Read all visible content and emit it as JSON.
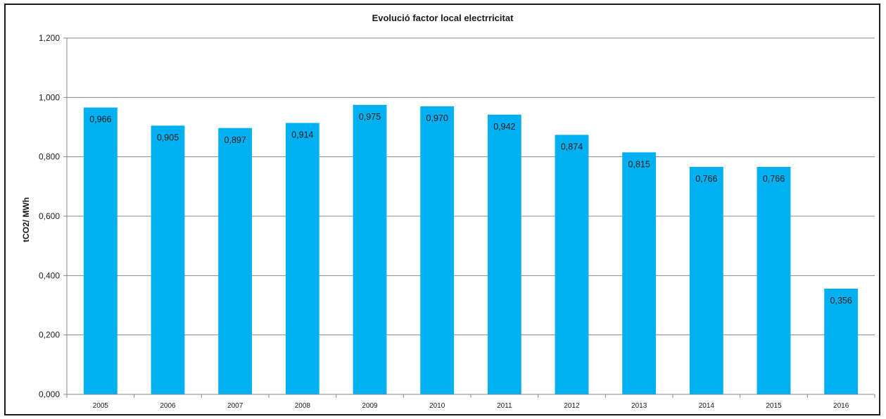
{
  "chart_data": {
    "type": "bar",
    "title": "Evolució factor local electrricitat",
    "xlabel": "",
    "ylabel": "tCO2/ MWh",
    "categories": [
      "2005",
      "2006",
      "2007",
      "2008",
      "2009",
      "2010",
      "2011",
      "2012",
      "2013",
      "2014",
      "2015",
      "2016"
    ],
    "values": [
      0.966,
      0.905,
      0.897,
      0.914,
      0.975,
      0.97,
      0.942,
      0.874,
      0.815,
      0.766,
      0.766,
      0.356
    ],
    "value_labels": [
      "0,966",
      "0,905",
      "0,897",
      "0,914",
      "0,975",
      "0,970",
      "0,942",
      "0,874",
      "0,815",
      "0,766",
      "0,766",
      "0,356"
    ],
    "ylim": [
      0,
      1.2
    ],
    "yticks": [
      0,
      0.2,
      0.4,
      0.6,
      0.8,
      1.0,
      1.2
    ],
    "ytick_labels": [
      "0,000",
      "0,200",
      "0,400",
      "0,600",
      "0,800",
      "1,000",
      "1,200"
    ],
    "grid": true,
    "legend": "none",
    "colors": {
      "bar": "#00B0F0",
      "grid": "#878787",
      "axis": "#878787",
      "text": "#1a1a1a"
    }
  }
}
